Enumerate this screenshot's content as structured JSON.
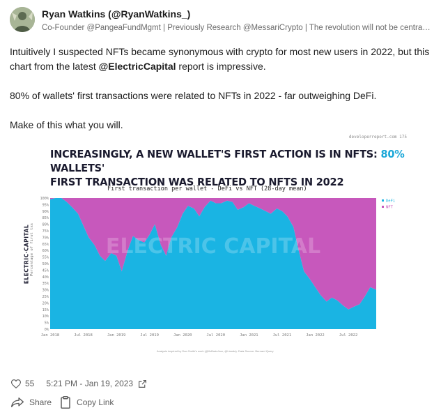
{
  "author": {
    "name": "Ryan Watkins (@RyanWatkins_)",
    "bio": "Co-Founder @PangeaFundMgmt | Previously Research @MessariCrypto | The revolution will not be centralized"
  },
  "tweet": {
    "line1_prefix": "Intuitively I suspected NFTs became synonymous with crypto for most new users in 2022, but this chart from the latest ",
    "line1_mention": "@ElectricCapital",
    "line1_suffix": " report is impressive.",
    "paragraph2": "80% of wallets' first transactions were related to NFTs in 2022 - far outweighing DeFi.",
    "paragraph3": "Make of this what you will."
  },
  "figure": {
    "source": "developerreport.com  175",
    "headline_part1": "INCREASINGLY, A NEW WALLET'S FIRST ACTION IS IN NFTS: ",
    "headline_highlight": "80%",
    "headline_part2": " WALLETS'",
    "headline_line2": "FIRST TRANSACTION WAS RELATED TO NFTS IN 2022",
    "brand": "ELECTRIC·CAPITAL",
    "watermark": "ELECTRIC CAPITAL",
    "footer": "Analysis inspired by Dan Smith's work (@0xBrainJarz, @Lianda). Data Source: Bernard Query"
  },
  "chart_data": {
    "type": "area",
    "title": "First transaction per wallet - DeFi vs NFT (28-day mean)",
    "ylabel": "Percentage of first txs",
    "yticks": [
      "0%",
      "5%",
      "10%",
      "15%",
      "20%",
      "25%",
      "30%",
      "35%",
      "40%",
      "45%",
      "50%",
      "55%",
      "60%",
      "65%",
      "70%",
      "75%",
      "80%",
      "85%",
      "90%",
      "95%",
      "100%"
    ],
    "xticks": [
      "Jan 2018",
      "Jul 2018",
      "Jan 2019",
      "Jul 2019",
      "Jan 2020",
      "Jul 2020",
      "Jan 2021",
      "Jul 2021",
      "Jan 2022",
      "Jul 2022"
    ],
    "ylim": [
      0,
      100
    ],
    "stacked": true,
    "legend_position": "top-right",
    "colors": {
      "DeFi": "#1ab4e3",
      "NFT": "#c758bc"
    },
    "x": [
      2018.0,
      2018.08,
      2018.17,
      2018.25,
      2018.33,
      2018.42,
      2018.5,
      2018.58,
      2018.67,
      2018.75,
      2018.83,
      2018.92,
      2019.0,
      2019.08,
      2019.17,
      2019.25,
      2019.33,
      2019.42,
      2019.5,
      2019.58,
      2019.67,
      2019.75,
      2019.83,
      2019.92,
      2020.0,
      2020.08,
      2020.17,
      2020.25,
      2020.33,
      2020.42,
      2020.5,
      2020.58,
      2020.67,
      2020.75,
      2020.83,
      2020.92,
      2021.0,
      2021.08,
      2021.17,
      2021.25,
      2021.33,
      2021.42,
      2021.5,
      2021.58,
      2021.67,
      2021.75,
      2021.83,
      2021.92,
      2022.0,
      2022.08,
      2022.17,
      2022.25,
      2022.33,
      2022.42,
      2022.5,
      2022.58,
      2022.67,
      2022.75,
      2022.83,
      2022.92
    ],
    "series": [
      {
        "name": "DeFi",
        "values": [
          99,
          100,
          100,
          97,
          93,
          88,
          79,
          70,
          64,
          56,
          52,
          58,
          56,
          44,
          60,
          71,
          68,
          66,
          72,
          80,
          64,
          56,
          70,
          78,
          88,
          94,
          92,
          86,
          93,
          98,
          96,
          96,
          98,
          97,
          91,
          93,
          96,
          94,
          92,
          90,
          88,
          92,
          90,
          86,
          78,
          60,
          44,
          38,
          32,
          26,
          21,
          24,
          22,
          18,
          15,
          17,
          19,
          25,
          32,
          30
        ]
      },
      {
        "name": "NFT",
        "values": [
          1,
          0,
          0,
          3,
          7,
          12,
          21,
          30,
          36,
          44,
          48,
          42,
          44,
          56,
          40,
          29,
          32,
          34,
          28,
          20,
          36,
          44,
          30,
          22,
          12,
          6,
          8,
          14,
          7,
          2,
          4,
          4,
          2,
          3,
          9,
          7,
          4,
          6,
          8,
          10,
          12,
          8,
          10,
          14,
          22,
          40,
          56,
          62,
          68,
          74,
          79,
          76,
          78,
          82,
          85,
          83,
          81,
          75,
          68,
          70
        ]
      }
    ]
  },
  "footer_meta": {
    "likes": "55",
    "timestamp": "5:21 PM - Jan 19, 2023"
  },
  "actions": {
    "share": "Share",
    "copy_link": "Copy Link"
  }
}
